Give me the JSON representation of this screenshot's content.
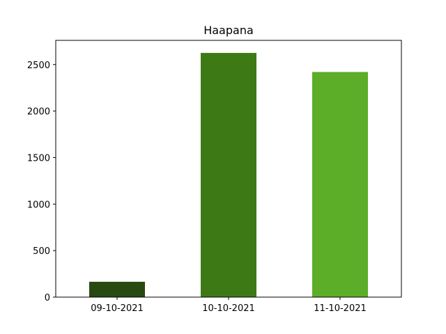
{
  "chart_data": {
    "type": "bar",
    "title": "Haapana",
    "xlabel": "",
    "ylabel": "",
    "categories": [
      "09-10-2021",
      "10-10-2021",
      "11-10-2021"
    ],
    "values": [
      165,
      2625,
      2420
    ],
    "colors": [
      "#284a12",
      "#3d7a16",
      "#5cad28"
    ],
    "ylim": [
      0,
      2760
    ],
    "yticks": [
      0,
      500,
      1000,
      1500,
      2000,
      2500
    ],
    "ytick_labels": [
      "0",
      "500",
      "1000",
      "1500",
      "2000",
      "2500"
    ],
    "grid": false,
    "legend": "none"
  }
}
